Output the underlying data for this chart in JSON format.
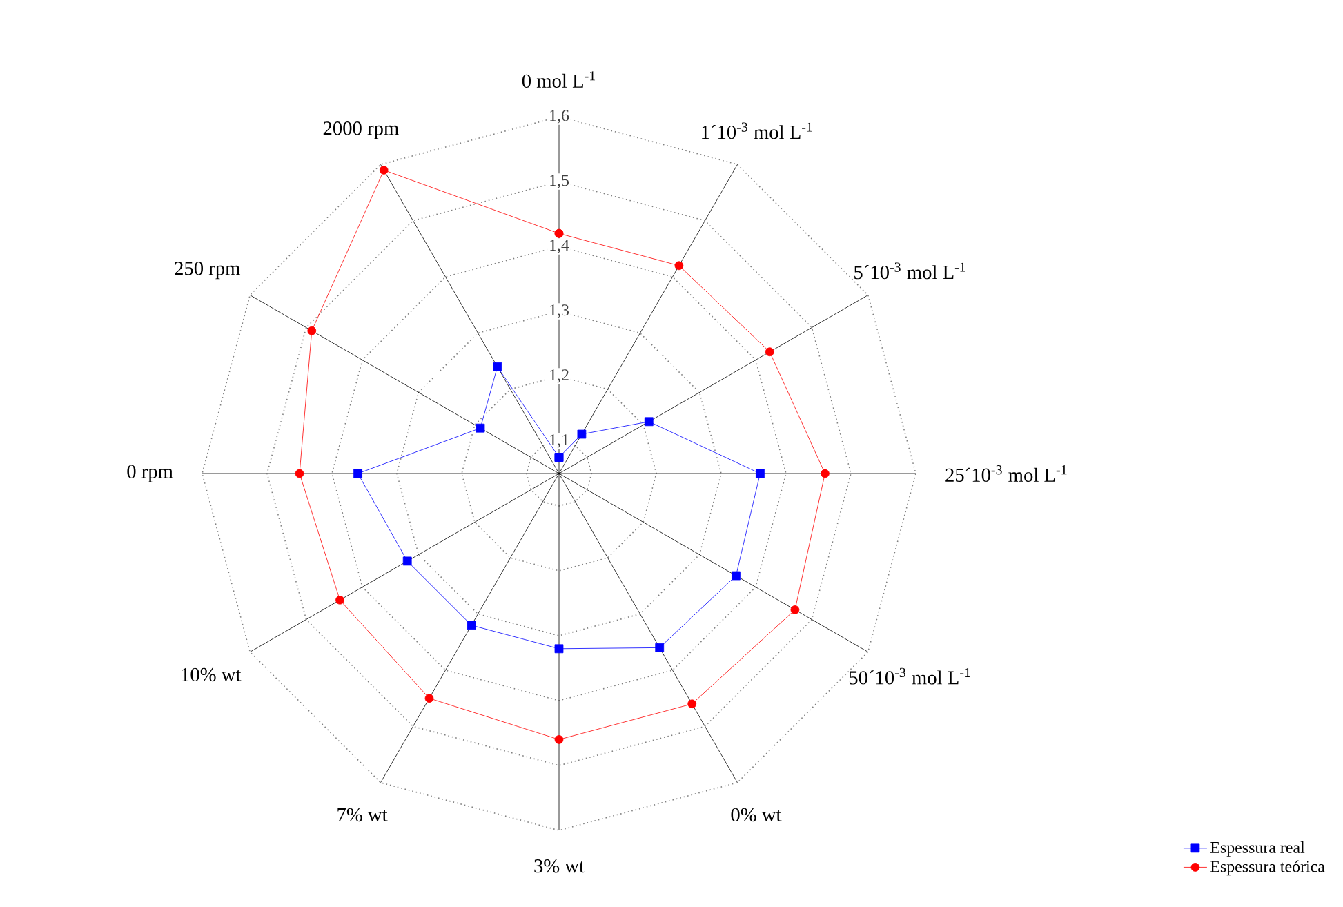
{
  "chart_data": {
    "type": "radar",
    "categories": [
      "0 mol L$^{-1}$",
      "1´10$^{-3}$ mol L$^{-1}$",
      "5´10$^{-3}$ mol L$^{-1}$",
      "25´10$^{-3}$ mol L$^{-1}$",
      "50´10$^{-3}$ mol L$^{-1}$",
      "0% wt",
      "3% wt",
      "7% wt",
      "10% wt",
      "0 rpm",
      "250 rpm",
      "2000 rpm"
    ],
    "series": [
      {
        "name": "Espessura real",
        "color": "#0000ff",
        "marker": "square",
        "values": [
          1.075,
          1.12,
          1.21,
          1.36,
          1.365,
          1.36,
          1.32,
          1.32,
          1.32,
          1.36,
          1.19,
          1.24
        ]
      },
      {
        "name": "Espessura teórica",
        "color": "#ff0000",
        "marker": "circle",
        "values": [
          1.42,
          1.42,
          1.425,
          1.46,
          1.47,
          1.46,
          1.46,
          1.45,
          1.44,
          1.45,
          1.49,
          1.59
        ]
      }
    ],
    "ylim": [
      1.05,
      1.6
    ],
    "yticks": [
      {
        "value": 1.1,
        "label": "1,1"
      },
      {
        "value": 1.2,
        "label": "1,2"
      },
      {
        "value": 1.3,
        "label": "1,3"
      },
      {
        "value": 1.4,
        "label": "1,4"
      },
      {
        "value": 1.5,
        "label": "1,5"
      },
      {
        "value": 1.6,
        "label": "1,6"
      }
    ],
    "grid": true,
    "legend": "bottom right"
  }
}
